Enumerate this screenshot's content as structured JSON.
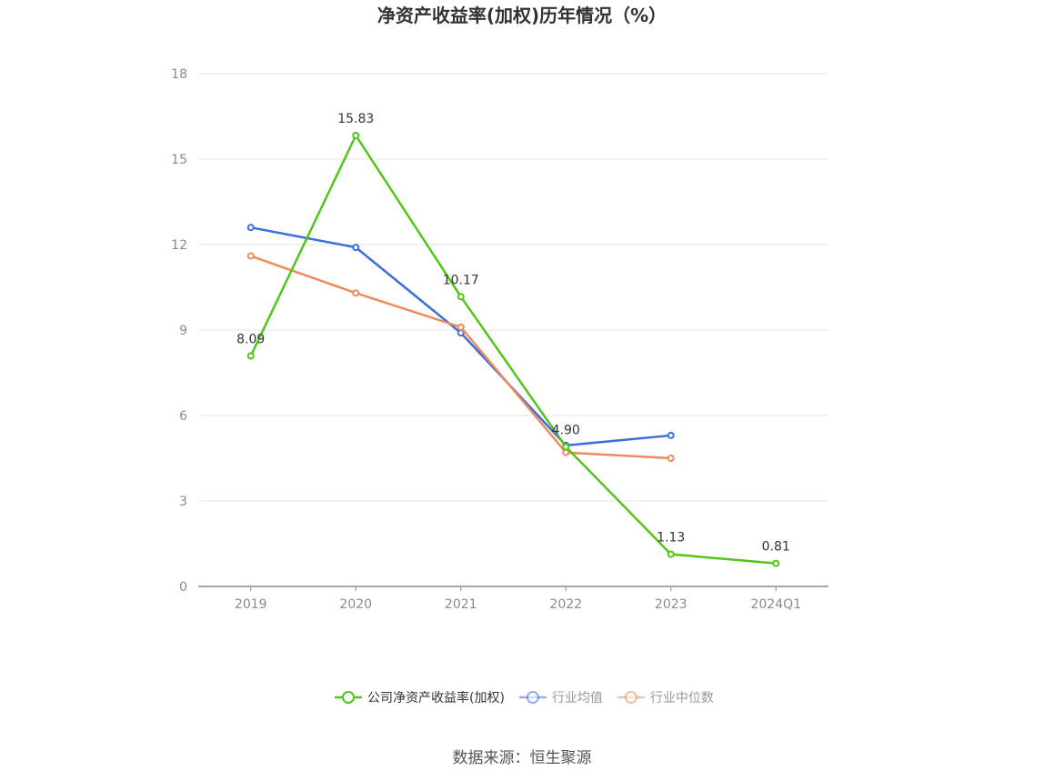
{
  "chart_data": {
    "type": "line",
    "title": "净资产收益率(加权)历年情况（%）",
    "categories": [
      "2019",
      "2020",
      "2021",
      "2022",
      "2023",
      "2024Q1"
    ],
    "ylim": [
      0,
      18
    ],
    "yticks": [
      0,
      3,
      6,
      9,
      12,
      15,
      18
    ],
    "grid": true,
    "legend_position": "bottom",
    "series": [
      {
        "name": "公司净资产收益率(加权)",
        "color": "#52c41a",
        "values": [
          8.09,
          15.83,
          10.17,
          4.9,
          1.13,
          0.81
        ],
        "labels": [
          "8.09",
          "15.83",
          "10.17",
          "4.90",
          "1.13",
          "0.81"
        ],
        "active": true
      },
      {
        "name": "行业均值",
        "color": "#3a6fdc",
        "values": [
          12.6,
          11.9,
          8.9,
          4.95,
          5.3,
          null
        ],
        "active": false
      },
      {
        "name": "行业中位数",
        "color": "#f08a5d",
        "values": [
          11.6,
          10.3,
          9.1,
          4.7,
          4.5,
          null
        ],
        "active": false
      }
    ]
  },
  "source": "数据来源：恒生聚源"
}
